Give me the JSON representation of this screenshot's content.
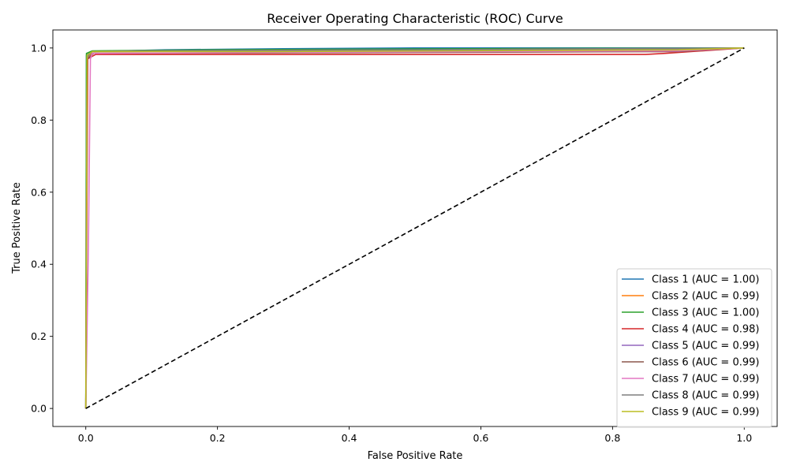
{
  "chart_data": {
    "type": "line",
    "title": "Receiver Operating Characteristic (ROC) Curve",
    "xlabel": "False Positive Rate",
    "ylabel": "True Positive Rate",
    "xlim": [
      -0.05,
      1.05
    ],
    "ylim": [
      -0.05,
      1.05
    ],
    "x_ticks": [
      "0.0",
      "0.2",
      "0.4",
      "0.6",
      "0.8",
      "1.0"
    ],
    "y_ticks": [
      "0.0",
      "0.2",
      "0.4",
      "0.6",
      "0.8",
      "1.0"
    ],
    "grid": false,
    "legend_position": "bottom-right",
    "reference_line": {
      "x": [
        0,
        1
      ],
      "y": [
        0,
        1
      ],
      "color": "#000000",
      "style": "dashed"
    },
    "series": [
      {
        "name": "Class 1 (AUC = 1.00)",
        "color": "#1f77b4",
        "x": [
          0,
          0.001,
          0.01,
          0.12,
          0.3,
          0.5,
          1.0
        ],
        "y": [
          0,
          0.98,
          0.99,
          0.995,
          0.998,
          1.0,
          1.0
        ]
      },
      {
        "name": "Class 2 (AUC = 0.99)",
        "color": "#ff7f0e",
        "x": [
          0,
          0.002,
          0.01,
          0.4,
          0.7,
          1.0
        ],
        "y": [
          0,
          0.975,
          0.985,
          0.988,
          0.99,
          1.0
        ]
      },
      {
        "name": "Class 3 (AUC = 1.00)",
        "color": "#2ca02c",
        "x": [
          0,
          0.001,
          0.01,
          0.2,
          0.6,
          1.0
        ],
        "y": [
          0,
          0.985,
          0.992,
          0.995,
          0.998,
          1.0
        ]
      },
      {
        "name": "Class 4 (AUC = 0.98)",
        "color": "#d62728",
        "x": [
          0,
          0.003,
          0.015,
          0.5,
          0.85,
          0.88,
          1.0
        ],
        "y": [
          0,
          0.97,
          0.982,
          0.982,
          0.982,
          0.985,
          1.0
        ]
      },
      {
        "name": "Class 5 (AUC = 0.99)",
        "color": "#9467bd",
        "x": [
          0,
          0.002,
          0.01,
          0.3,
          0.8,
          1.0
        ],
        "y": [
          0,
          0.975,
          0.99,
          0.992,
          0.995,
          1.0
        ]
      },
      {
        "name": "Class 6 (AUC = 0.99)",
        "color": "#8c564b",
        "x": [
          0,
          0.002,
          0.012,
          0.4,
          0.9,
          1.0
        ],
        "y": [
          0,
          0.97,
          0.985,
          0.987,
          0.99,
          1.0
        ]
      },
      {
        "name": "Class 7 (AUC = 0.99)",
        "color": "#e377c2",
        "x": [
          0,
          0.004,
          0.007,
          0.01,
          0.3,
          0.9,
          1.0
        ],
        "y": [
          0,
          0.45,
          0.97,
          0.985,
          0.988,
          0.992,
          1.0
        ]
      },
      {
        "name": "Class 8 (AUC = 0.99)",
        "color": "#7f7f7f",
        "x": [
          0,
          0.002,
          0.01,
          0.07,
          0.5,
          1.0
        ],
        "y": [
          0,
          0.975,
          0.99,
          0.992,
          0.995,
          1.0
        ]
      },
      {
        "name": "Class 9 (AUC = 0.99)",
        "color": "#bcbd22",
        "x": [
          0,
          0.002,
          0.01,
          0.3,
          0.9,
          1.0
        ],
        "y": [
          0,
          0.98,
          0.99,
          0.99,
          0.995,
          1.0
        ]
      }
    ]
  }
}
